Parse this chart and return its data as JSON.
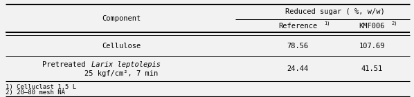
{
  "title": "Reduced sugar ( %, w/w)",
  "col_header": "Component",
  "col2_header": "Reference",
  "col2_super": "1)",
  "col3_header": "KMF006",
  "col3_super": "2)",
  "row1_label": "Cellulose",
  "row1_val1": "78.56",
  "row1_val2": "107.69",
  "row2_label_normal": "Pretreated ",
  "row2_label_italic": "Larix leptolepis",
  "row2_label_line2": "25 kgf/cm², 7 min",
  "row2_val1": "24.44",
  "row2_val2": "41.51",
  "footnote1": "1) Celluclast 1.5 L",
  "footnote2": "2) 20–80 mesh NA",
  "bg_color": "#f2f2f2",
  "fontsize": 7.5,
  "fontsize_fn": 6.5,
  "fontsize_super": 5.0
}
